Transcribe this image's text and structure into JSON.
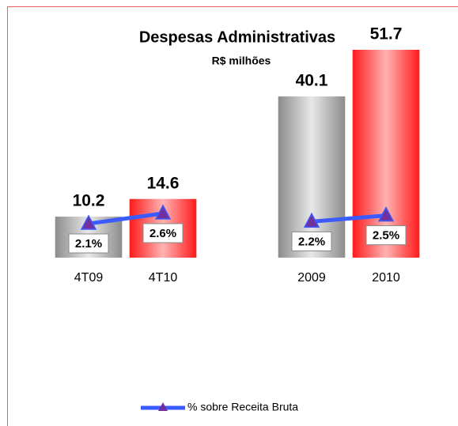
{
  "chart_data": {
    "type": "bar",
    "title": "Despesas Administrativas",
    "subtitle": "R$ milhões",
    "categories": [
      "4T09",
      "4T10",
      null,
      "2009",
      "2010"
    ],
    "values": [
      10.2,
      14.6,
      null,
      40.1,
      51.7
    ],
    "colors": [
      "#a6a6a6",
      "#ff0000",
      null,
      "#a6a6a6",
      "#ff0000"
    ],
    "series": [
      {
        "name": "% sobre Receita Bruta",
        "color": "#3b5bff",
        "marker_color": "#7030a0",
        "axis": "y2",
        "values": [
          2.1,
          2.6,
          null,
          2.2,
          2.5
        ],
        "value_labels": [
          "2.1%",
          "2.6%",
          null,
          "2.2%",
          "2.5%"
        ]
      }
    ],
    "legend": "bottom"
  }
}
